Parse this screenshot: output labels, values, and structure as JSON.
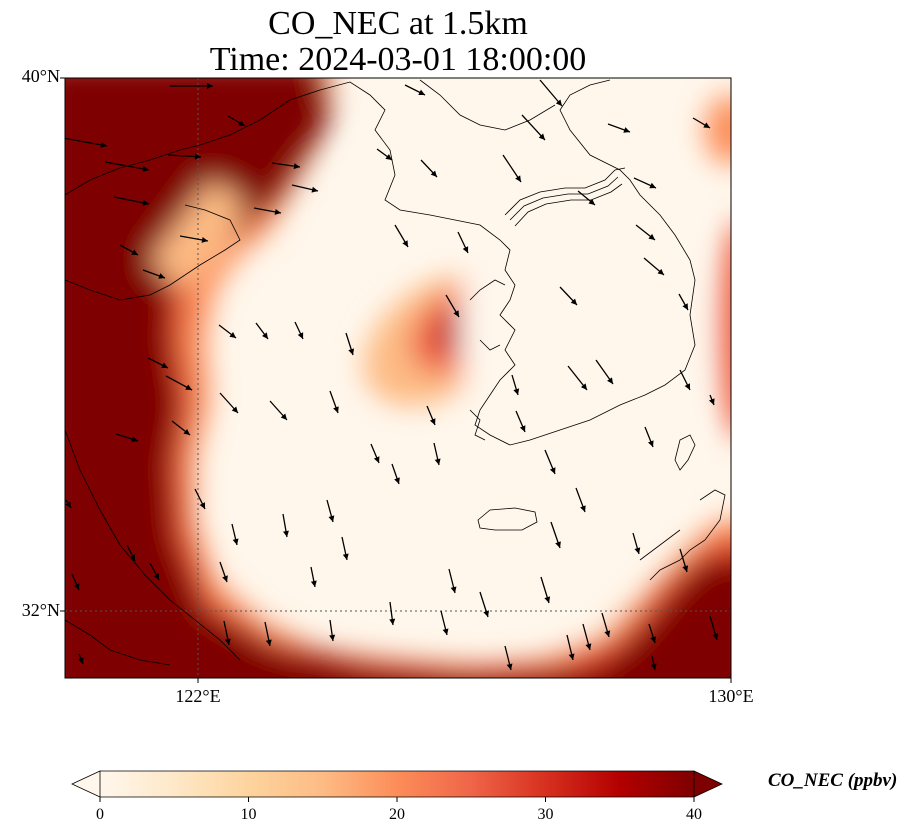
{
  "title": {
    "line1": "CO_NEC at 1.5km",
    "line2": "Time: 2024-03-01 18:00:00"
  },
  "map": {
    "lat_labels": [
      "40°N",
      "32°N"
    ],
    "lon_labels": [
      "122°E",
      "130°E"
    ]
  },
  "colorbar": {
    "title": "CO_NEC (ppbv)",
    "ticks": [
      "0",
      "10",
      "20",
      "30",
      "40"
    ],
    "min": 0,
    "max": 40,
    "extend": "both",
    "colormap": "OrRd",
    "colors": [
      "#fff7ec",
      "#fee8c8",
      "#fdd49e",
      "#fdbb84",
      "#fc8d59",
      "#ef6548",
      "#d7301f",
      "#b30000",
      "#7f0000"
    ]
  }
}
